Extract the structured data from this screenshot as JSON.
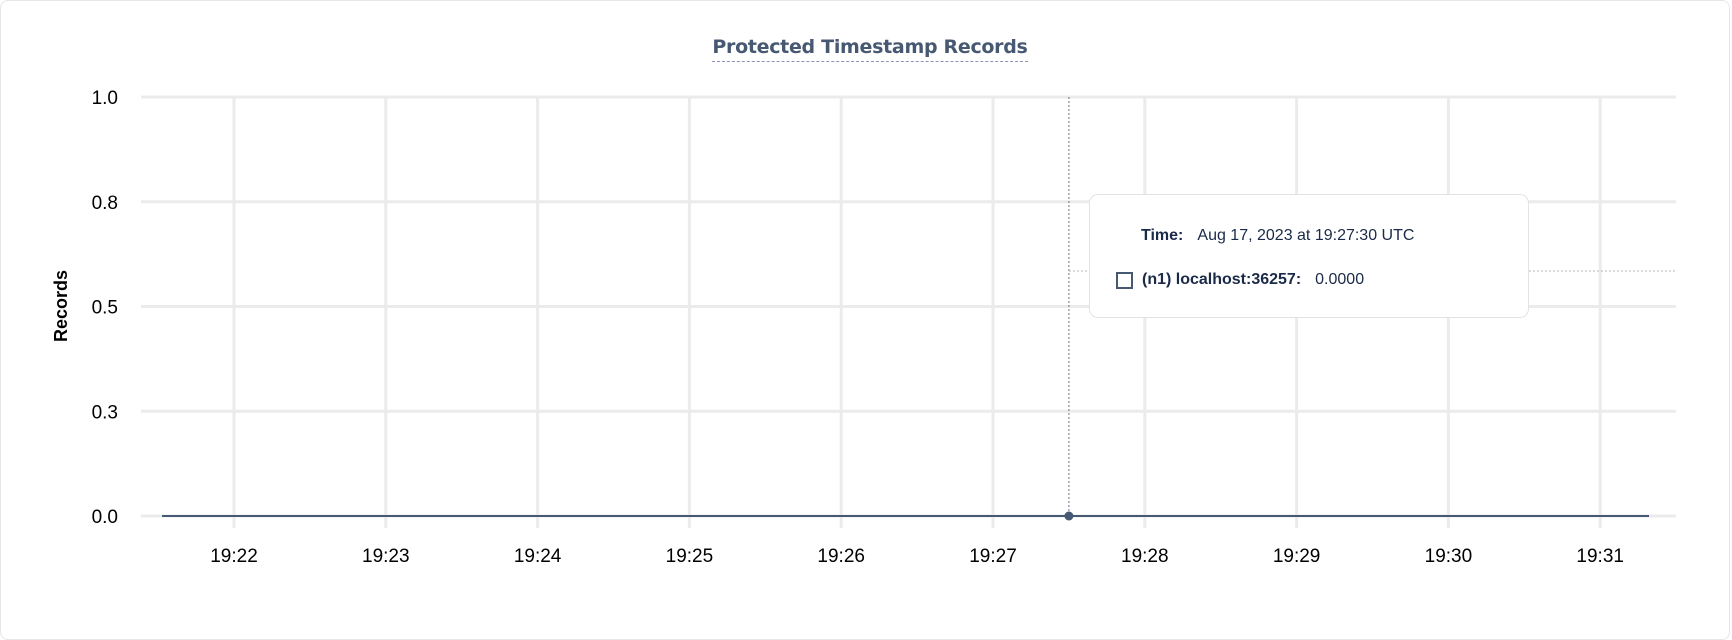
{
  "chart_data": {
    "type": "line",
    "title": "Protected Timestamp Records",
    "xlabel": "",
    "ylabel": "Records",
    "x_ticks": [
      "19:22",
      "19:23",
      "19:24",
      "19:25",
      "19:26",
      "19:27",
      "19:28",
      "19:29",
      "19:30",
      "19:31"
    ],
    "y_ticks": [
      {
        "value": 1.0,
        "label": "1.0"
      },
      {
        "value": 0.75,
        "label": "0.8"
      },
      {
        "value": 0.5,
        "label": "0.5"
      },
      {
        "value": 0.25,
        "label": "0.3"
      },
      {
        "value": 0.0,
        "label": "0.0"
      }
    ],
    "xlim": [
      "19:21:30",
      "19:31:20"
    ],
    "ylim": [
      0,
      1
    ],
    "grid": true,
    "series": [
      {
        "name": "(n1) localhost:36257",
        "color": "#475872",
        "x": [
          "19:21:30",
          "19:31:20"
        ],
        "y": [
          0,
          0
        ]
      }
    ],
    "hover": {
      "time": "19:27:30",
      "value": 0
    }
  },
  "tooltip": {
    "time_label": "Time:",
    "time_value": "Aug 17, 2023 at 19:27:30 UTC",
    "series_label": "(n1) localhost:36257:",
    "series_value": "0.0000"
  }
}
